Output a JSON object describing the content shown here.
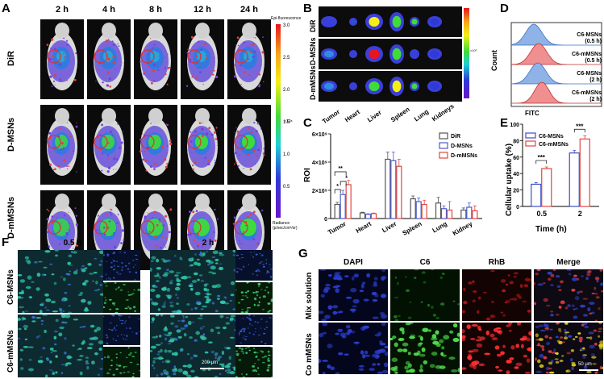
{
  "panel_labels": {
    "A": "A",
    "B": "B",
    "C": "C",
    "D": "D",
    "E": "E",
    "F": "F",
    "G": "G"
  },
  "panel_a": {
    "time_labels": [
      "2 h",
      "4 h",
      "8 h",
      "12 h",
      "24 h"
    ],
    "row_labels": [
      "DiR",
      "D-MSNs",
      "D-mMSNs"
    ],
    "colorbar": {
      "title": "Epi-fluorescence",
      "ticks": [
        "3.0",
        "2.5",
        "2.0",
        "1.5",
        "1.0",
        "0.5"
      ],
      "unit": "×10⁸",
      "footer1": "Radiance",
      "footer2": "(p/sec/cm²/sr)"
    }
  },
  "panel_b": {
    "row_labels": [
      "DiR",
      "D-MSNs",
      "D-mMSNs"
    ],
    "organ_labels": [
      "Tumor",
      "Heart",
      "Liver",
      "Spleen",
      "Lung",
      "Kidneys"
    ],
    "colorbar_unit": "×10⁹"
  },
  "chart_data": [
    {
      "type": "bar",
      "title": "",
      "ylabel": "ROI",
      "xlabel": "",
      "categories": [
        "Tumor",
        "Heart",
        "Liver",
        "Spleen",
        "Lung",
        "Kidney"
      ],
      "ylim": [
        0,
        6000000000
      ],
      "yticks": [
        "0",
        "2×10⁹",
        "4×10⁹",
        "6×10⁹"
      ],
      "legend_position": "top-right",
      "series": [
        {
          "name": "DiR",
          "color": "#555555",
          "values": [
            1000000000,
            400000000,
            4200000000,
            1400000000,
            1100000000,
            600000000
          ],
          "errors": [
            150000000,
            50000000,
            500000000,
            200000000,
            400000000,
            150000000
          ]
        },
        {
          "name": "D-MSNs",
          "color": "#4a5ccf",
          "values": [
            1700000000,
            300000000,
            4100000000,
            1200000000,
            700000000,
            800000000
          ],
          "errors": [
            300000000,
            40000000,
            600000000,
            250000000,
            200000000,
            300000000
          ]
        },
        {
          "name": "D-mMSNs",
          "color": "#e0473f",
          "values": [
            2400000000,
            350000000,
            3700000000,
            1000000000,
            600000000,
            550000000
          ],
          "errors": [
            300000000,
            40000000,
            500000000,
            300000000,
            600000000,
            350000000
          ]
        }
      ],
      "significance": [
        {
          "label": "**"
        },
        {
          "label": "*"
        },
        {
          "label": "*"
        }
      ]
    },
    {
      "type": "bar",
      "title": "",
      "ylabel": "Cellular uptake (%)",
      "xlabel": "Time (h)",
      "categories": [
        "0.5",
        "2"
      ],
      "ylim": [
        0,
        100
      ],
      "yticks": [
        "0",
        "20",
        "40",
        "60",
        "80",
        "100"
      ],
      "legend_position": "top-left",
      "series": [
        {
          "name": "C6-MSNs",
          "color": "#3b4fc4",
          "values": [
            27,
            65
          ],
          "errors": [
            2,
            3
          ]
        },
        {
          "name": "C6-mMSNs",
          "color": "#e0473f",
          "values": [
            46,
            82
          ],
          "errors": [
            2,
            4
          ]
        }
      ],
      "significance": [
        {
          "label": "***"
        },
        {
          "label": "***"
        }
      ]
    }
  ],
  "panel_d": {
    "ylabel": "Count",
    "xlabel": "FITC",
    "legend": [
      "C6-MSNs",
      "(0.5 h)",
      "C6-mMSNs",
      "(0.5 h)",
      "C6-MSNs",
      "(2 h)",
      "C6-mMSNs",
      "(2 h)"
    ]
  },
  "panel_f": {
    "time_labels": [
      "0.5 h",
      "2 h"
    ],
    "row_labels": [
      "C6-MSNs",
      "C6-mMSNs"
    ],
    "scale": "200 μm"
  },
  "panel_g": {
    "col_labels": [
      "DAPI",
      "C6",
      "RhB",
      "Merge"
    ],
    "row_labels": [
      "Mix solution",
      "Co mMSNs"
    ],
    "scale": "50 μm"
  },
  "colors": {
    "blue": "#3b4fc4",
    "red": "#e0473f",
    "gray": "#555555",
    "mouse_bg": "#0b0b0b"
  }
}
